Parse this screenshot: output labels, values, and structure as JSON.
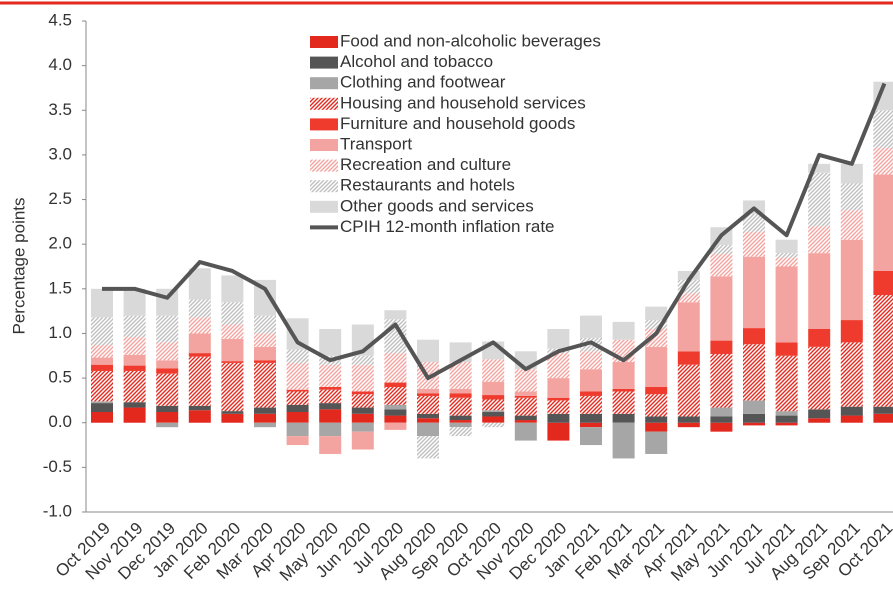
{
  "chart_data": {
    "type": "bar",
    "stacked": true,
    "y_label": "Percentage points",
    "categories": [
      "Oct 2019",
      "Nov 2019",
      "Dec 2019",
      "Jan 2020",
      "Feb 2020",
      "Mar 2020",
      "Apr 2020",
      "May 2020",
      "Jun 2020",
      "Jul 2020",
      "Aug 2020",
      "Sep 2020",
      "Oct 2020",
      "Nov 2020",
      "Dec 2020",
      "Jan 2021",
      "Feb 2021",
      "Mar 2021",
      "Apr 2021",
      "May 2021",
      "Jun 2021",
      "Jul 2021",
      "Aug 2021",
      "Sep 2021",
      "Oct 2021"
    ],
    "series": [
      {
        "name": "Food and non-alcoholic beverages",
        "color": "#e3281e",
        "hatched": false,
        "values": [
          0.12,
          0.17,
          0.12,
          0.14,
          0.1,
          0.1,
          0.12,
          0.15,
          0.1,
          0.08,
          0.05,
          0.03,
          0.07,
          0.03,
          -0.2,
          -0.05,
          0,
          -0.1,
          -0.05,
          -0.1,
          -0.03,
          -0.03,
          0.05,
          0.08,
          0.1
        ]
      },
      {
        "name": "Alcohol and tobacco",
        "color": "#555555",
        "hatched": false,
        "values": [
          0.1,
          0.06,
          0.07,
          0.05,
          0.03,
          0.07,
          0.08,
          0.07,
          0.07,
          0.07,
          0.05,
          0.05,
          0.05,
          0.05,
          0.1,
          0.1,
          0.1,
          0.07,
          0.07,
          0.07,
          0.1,
          0.08,
          0.1,
          0.1,
          0.08
        ]
      },
      {
        "name": "Clothing and footwear",
        "color": "#a6a6a6",
        "hatched": false,
        "values": [
          0.02,
          0,
          -0.05,
          0,
          0,
          -0.05,
          -0.15,
          -0.15,
          -0.1,
          0.05,
          -0.15,
          -0.05,
          0.02,
          -0.2,
          0,
          -0.2,
          -0.4,
          -0.25,
          0,
          0.1,
          0.15,
          0.05,
          0,
          0,
          0
        ]
      },
      {
        "name": "Housing and household services",
        "color": "#e3281e",
        "hatched": true,
        "values": [
          0.34,
          0.35,
          0.36,
          0.55,
          0.54,
          0.5,
          0.15,
          0.15,
          0.15,
          0.2,
          0.2,
          0.2,
          0.12,
          0.2,
          0.15,
          0.2,
          0.25,
          0.25,
          0.58,
          0.6,
          0.63,
          0.62,
          0.7,
          0.72,
          1.25
        ]
      },
      {
        "name": "Furniture and household goods",
        "color": "#ee3b2d",
        "hatched": false,
        "values": [
          0.07,
          0.06,
          0.06,
          0.04,
          0.02,
          0.03,
          0.02,
          0.03,
          0.03,
          0.05,
          0.03,
          0.05,
          0.05,
          0.02,
          0.03,
          0.05,
          0.03,
          0.08,
          0.15,
          0.15,
          0.18,
          0.15,
          0.2,
          0.25,
          0.27
        ]
      },
      {
        "name": "Transport",
        "color": "#f4a4a0",
        "hatched": false,
        "values": [
          0.08,
          0.12,
          0.09,
          0.22,
          0.25,
          0.15,
          -0.1,
          -0.2,
          -0.2,
          -0.08,
          0.05,
          0.05,
          0.15,
          0.05,
          0.22,
          0.25,
          0.3,
          0.45,
          0.55,
          0.72,
          0.8,
          0.85,
          0.85,
          0.9,
          1.08
        ]
      },
      {
        "name": "Recreation and culture",
        "color": "#f4a4a0",
        "hatched": true,
        "values": [
          0.14,
          0.2,
          0.2,
          0.18,
          0.16,
          0.15,
          0.3,
          0.25,
          0.3,
          0.33,
          0.3,
          0.3,
          0.25,
          0.25,
          0.28,
          0.2,
          0.25,
          0.2,
          0.1,
          0.25,
          0.28,
          0.1,
          0.3,
          0.33,
          0.3
        ]
      },
      {
        "name": "Restaurants and hotels",
        "color": "#bfbfbf",
        "hatched": true,
        "values": [
          0.31,
          0.24,
          0.3,
          0.2,
          0.25,
          0.2,
          0.15,
          0.1,
          0.1,
          0.38,
          -0.25,
          -0.1,
          -0.05,
          0,
          0.05,
          0.15,
          0,
          0.1,
          0.15,
          0.1,
          0.2,
          0.05,
          0.6,
          0.3,
          0.42
        ]
      },
      {
        "name": "Other goods and services",
        "color": "#d9d9d9",
        "hatched": false,
        "values": [
          0.32,
          0.3,
          0.3,
          0.35,
          0.3,
          0.4,
          0.35,
          0.3,
          0.35,
          0.1,
          0.25,
          0.22,
          0.2,
          0.2,
          0.22,
          0.25,
          0.2,
          0.15,
          0.1,
          0.2,
          0.15,
          0.15,
          0.1,
          0.22,
          0.32
        ]
      }
    ],
    "line": {
      "name": "CPIH 12-month inflation rate",
      "color": "#555555",
      "values": [
        1.5,
        1.5,
        1.4,
        1.8,
        1.7,
        1.5,
        0.9,
        0.7,
        0.8,
        1.1,
        0.5,
        0.7,
        0.9,
        0.6,
        0.8,
        0.9,
        0.7,
        1.0,
        1.6,
        2.1,
        2.4,
        2.1,
        3.0,
        2.9,
        3.8
      ]
    },
    "ylim": [
      -1,
      4.5
    ],
    "yticks": [
      {
        "value": -1,
        "label": "-1.0"
      },
      -0.5,
      {
        "value": 0,
        "label": "0.0"
      },
      0.5,
      {
        "value": 1,
        "label": "1.0"
      },
      1.5,
      {
        "value": 2,
        "label": "2.0"
      },
      2.5,
      {
        "value": 3,
        "label": "3.0"
      },
      3.5,
      {
        "value": 4,
        "label": "4.0"
      },
      4.5
    ],
    "legend": "top"
  }
}
